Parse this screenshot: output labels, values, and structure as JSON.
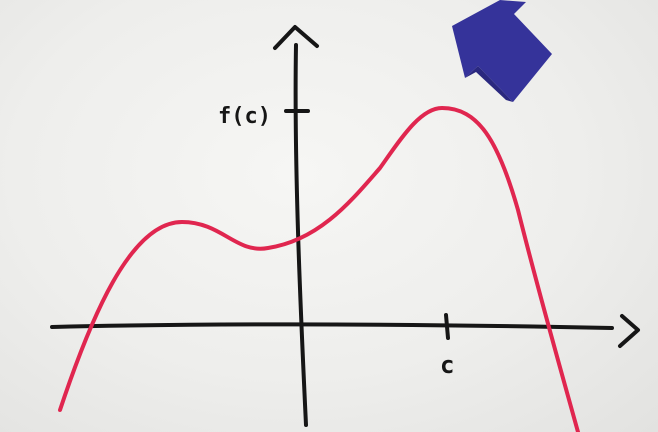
{
  "labels": {
    "y_marker": "f(c)",
    "x_marker": "c"
  },
  "colors": {
    "curve": "#e0264f",
    "axes": "#161616",
    "arrow_pointer": "#35339a",
    "paper": "#ececea"
  },
  "pointer": {
    "icon": "arrow-pointer-icon",
    "points_to": "maximum"
  }
}
